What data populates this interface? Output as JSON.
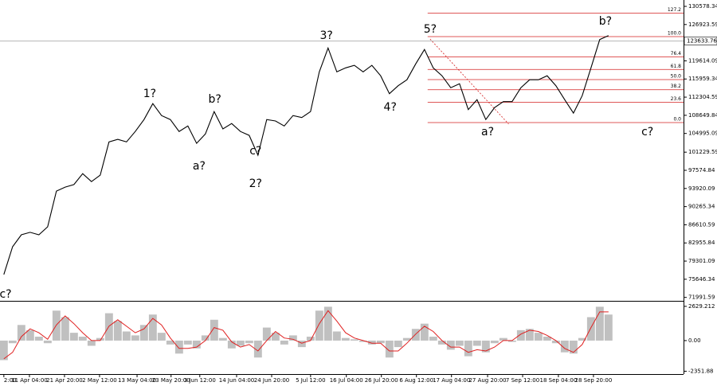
{
  "chart_data": [
    {
      "type": "line",
      "color": "#000000",
      "xlim": [
        -0.11,
        19.39
      ],
      "ylim": [
        71300,
        131860
      ],
      "yticks": [
        130578.34,
        126923.59,
        119614.09,
        115959.34,
        112304.59,
        108649.84,
        104995.09,
        101229.59,
        97574.84,
        93920.09,
        90265.34,
        86610.59,
        82955.84,
        79301.09,
        75646.34,
        71991.59
      ],
      "current_price": 123633.76,
      "x": [
        0,
        0.25,
        0.5,
        0.75,
        1,
        1.25,
        1.5,
        1.75,
        2,
        2.25,
        2.5,
        2.75,
        3,
        3.25,
        3.5,
        3.75,
        4,
        4.25,
        4.5,
        4.75,
        5,
        5.25,
        5.5,
        5.75,
        6,
        6.25,
        6.5,
        6.75,
        7,
        7.25,
        7.5,
        7.75,
        8,
        8.25,
        8.5,
        8.75,
        9,
        9.25,
        9.5,
        9.75,
        10,
        10.25,
        10.5,
        10.75,
        11,
        11.25,
        11.5,
        11.75,
        12,
        12.25,
        12.5,
        12.75,
        13,
        13.25,
        13.5,
        13.75,
        14,
        14.25,
        14.5,
        14.75,
        15,
        15.25,
        15.5,
        15.75,
        16,
        16.25,
        16.5,
        16.75,
        17,
        17.25
      ],
      "values": [
        76600,
        82200,
        84600,
        85100,
        84600,
        86200,
        93400,
        94200,
        94700,
        96900,
        95300,
        96600,
        103300,
        103800,
        103300,
        105400,
        107800,
        111000,
        108600,
        107800,
        105400,
        106500,
        103000,
        104900,
        109400,
        105900,
        107000,
        105400,
        104600,
        100600,
        107800,
        107500,
        106500,
        108600,
        108200,
        109400,
        117400,
        122200,
        117400,
        118200,
        118700,
        117400,
        118700,
        116600,
        113000,
        114600,
        115800,
        119000,
        121900,
        118200,
        116600,
        114200,
        115000,
        109800,
        111800,
        107800,
        110200,
        111400,
        111400,
        114200,
        115800,
        115800,
        116600,
        114600,
        111800,
        109100,
        112600,
        118200,
        123900,
        124700
      ],
      "fib_color": "#d42020",
      "fib_start": 12.09,
      "fib_levels": [
        {
          "label": "127.2",
          "price": 129196
        },
        {
          "label": "100.0",
          "price": 124490
        },
        {
          "label": "76.4",
          "price": 120400
        },
        {
          "label": "61.8",
          "price": 117880
        },
        {
          "label": "50.0",
          "price": 115840
        },
        {
          "label": "38.2",
          "price": 113800
        },
        {
          "label": "23.6",
          "price": 111270
        },
        {
          "label": "0.0",
          "price": 107188
        }
      ],
      "trend_line": {
        "x": [
          12.16,
          14.4
        ],
        "price": [
          124000,
          106900
        ]
      },
      "annotations": [
        {
          "text": "c?",
          "color": "#1f1fd6",
          "x": 0,
          "price": 72600
        },
        {
          "text": "1?",
          "color": "#1f1fd6",
          "x": 4.16,
          "price": 112950
        },
        {
          "text": "a?",
          "color": "#d42020",
          "x": 5.57,
          "price": 98400
        },
        {
          "text": "b?",
          "color": "#d42020",
          "x": 6.02,
          "price": 111800
        },
        {
          "text": "c?",
          "color": "#d42020",
          "x": 7.18,
          "price": 101400
        },
        {
          "text": "2?",
          "color": "#1f1fd6",
          "x": 7.18,
          "price": 94850
        },
        {
          "text": "3?",
          "color": "#1f1fd6",
          "x": 9.2,
          "price": 124650
        },
        {
          "text": "4?",
          "color": "#1f1fd6",
          "x": 11.02,
          "price": 110230
        },
        {
          "text": "5?",
          "color": "#1f1fd6",
          "x": 12.16,
          "price": 125930
        },
        {
          "text": "a?",
          "color": "#1f1fd6",
          "x": 13.8,
          "price": 105270
        },
        {
          "text": "b?",
          "color": "#1f1fd6",
          "x": 17.16,
          "price": 127530
        },
        {
          "text": "c?",
          "color": "#1f1fd6",
          "x": 18.36,
          "price": 105270
        }
      ]
    },
    {
      "type": "bar",
      "xlim": [
        -0.11,
        19.39
      ],
      "ylim": [
        -2570,
        2930
      ],
      "yticks": [
        2629.212,
        {
          "value": 0,
          "label": "0.00"
        },
        -2351.88
      ],
      "xticks": [
        {
          "value": 0,
          "label": "2:00"
        },
        {
          "value": 0.73,
          "label": "11 Apr 04:00"
        },
        {
          "value": 1.73,
          "label": "21 Apr 20:00"
        },
        {
          "value": 2.73,
          "label": "2 May 12:00"
        },
        {
          "value": 3.8,
          "label": "13 May 04:00"
        },
        {
          "value": 4.77,
          "label": "23 May 20:00"
        },
        {
          "value": 5.59,
          "label": "3 Jun 12:00"
        },
        {
          "value": 6.64,
          "label": "14 Jun 04:00"
        },
        {
          "value": 7.64,
          "label": "24 Jun 20:00"
        },
        {
          "value": 8.75,
          "label": "5 Jul 12:00"
        },
        {
          "value": 9.77,
          "label": "16 Jul 04:00"
        },
        {
          "value": 10.77,
          "label": "26 Jul 20:00"
        },
        {
          "value": 11.77,
          "label": "6 Aug 12:00"
        },
        {
          "value": 12.77,
          "label": "17 Aug 04:00"
        },
        {
          "value": 13.8,
          "label": "27 Aug 20:00"
        },
        {
          "value": 14.8,
          "label": "7 Sep 12:00"
        },
        {
          "value": 15.82,
          "label": "18 Sep 04:00"
        },
        {
          "value": 16.82,
          "label": "28 Sep 20:00"
        }
      ],
      "x": [
        0,
        0.25,
        0.5,
        0.75,
        1,
        1.25,
        1.5,
        1.75,
        2,
        2.25,
        2.5,
        2.75,
        3,
        3.25,
        3.5,
        3.75,
        4,
        4.25,
        4.5,
        4.75,
        5,
        5.25,
        5.5,
        5.75,
        6,
        6.25,
        6.5,
        6.75,
        7,
        7.25,
        7.5,
        7.75,
        8,
        8.25,
        8.5,
        8.75,
        9,
        9.25,
        9.5,
        9.75,
        10,
        10.25,
        10.5,
        10.75,
        11,
        11.25,
        11.5,
        11.75,
        12,
        12.25,
        12.5,
        12.75,
        13,
        13.25,
        13.5,
        13.75,
        14,
        14.25,
        14.5,
        14.75,
        15,
        15.25,
        15.5,
        15.75,
        16,
        16.25,
        16.5,
        16.75,
        17,
        17.25
      ],
      "series": [
        {
          "color": "#c0c0c0",
          "values": [
            -1500,
            -200,
            1200,
            800,
            300,
            -200,
            2300,
            1800,
            600,
            300,
            -400,
            200,
            2100,
            1500,
            700,
            400,
            1200,
            2000,
            600,
            -300,
            -1000,
            -300,
            -600,
            400,
            1600,
            200,
            -600,
            -400,
            -200,
            -1300,
            1000,
            600,
            -300,
            400,
            -500,
            300,
            2300,
            2600,
            700,
            200,
            100,
            -100,
            -300,
            -200,
            -1300,
            -500,
            200,
            900,
            1300,
            300,
            -300,
            -700,
            -400,
            -1200,
            -400,
            -900,
            -200,
            200,
            -100,
            800,
            900,
            600,
            300,
            -200,
            -900,
            -1000,
            200,
            1800,
            2600,
            2000
          ]
        },
        {
          "color": "#e02020",
          "values": [
            -1400,
            -900,
            300,
            900,
            600,
            100,
            1200,
            1900,
            1300,
            600,
            0,
            0,
            1100,
            1600,
            1100,
            600,
            900,
            1700,
            1200,
            200,
            -600,
            -600,
            -500,
            0,
            1000,
            800,
            -100,
            -500,
            -300,
            -800,
            0,
            700,
            200,
            100,
            -200,
            0,
            1300,
            2300,
            1500,
            600,
            200,
            0,
            -200,
            -200,
            -800,
            -800,
            -200,
            500,
            1100,
            700,
            0,
            -500,
            -500,
            -900,
            -700,
            -800,
            -500,
            0,
            0,
            500,
            800,
            700,
            400,
            0,
            -600,
            -900,
            -300,
            1000,
            2200,
            2200
          ]
        }
      ]
    }
  ]
}
